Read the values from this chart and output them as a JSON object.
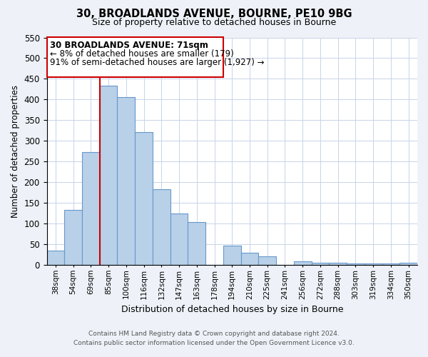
{
  "title1": "30, BROADLANDS AVENUE, BOURNE, PE10 9BG",
  "title2": "Size of property relative to detached houses in Bourne",
  "xlabel": "Distribution of detached houses by size in Bourne",
  "ylabel": "Number of detached properties",
  "bar_labels": [
    "38sqm",
    "54sqm",
    "69sqm",
    "85sqm",
    "100sqm",
    "116sqm",
    "132sqm",
    "147sqm",
    "163sqm",
    "178sqm",
    "194sqm",
    "210sqm",
    "225sqm",
    "241sqm",
    "256sqm",
    "272sqm",
    "288sqm",
    "303sqm",
    "319sqm",
    "334sqm",
    "350sqm"
  ],
  "bar_values": [
    35,
    133,
    272,
    433,
    405,
    321,
    183,
    125,
    103,
    0,
    46,
    30,
    20,
    0,
    8,
    5,
    5,
    3,
    3,
    3,
    5
  ],
  "bar_color": "#b8d0e8",
  "bar_edge_color": "#6699cc",
  "vline_color": "#cc0000",
  "vline_x_index": 2,
  "ylim": [
    0,
    550
  ],
  "yticks": [
    0,
    50,
    100,
    150,
    200,
    250,
    300,
    350,
    400,
    450,
    500,
    550
  ],
  "ann_line1": "30 BROADLANDS AVENUE: 71sqm",
  "ann_line2": "← 8% of detached houses are smaller (179)",
  "ann_line3": "91% of semi-detached houses are larger (1,927) →",
  "footnote1": "Contains HM Land Registry data © Crown copyright and database right 2024.",
  "footnote2": "Contains public sector information licensed under the Open Government Licence v3.0.",
  "bg_color": "#eef2f8",
  "plot_bg_color": "#ffffff",
  "grid_color": "#c8d4e8"
}
